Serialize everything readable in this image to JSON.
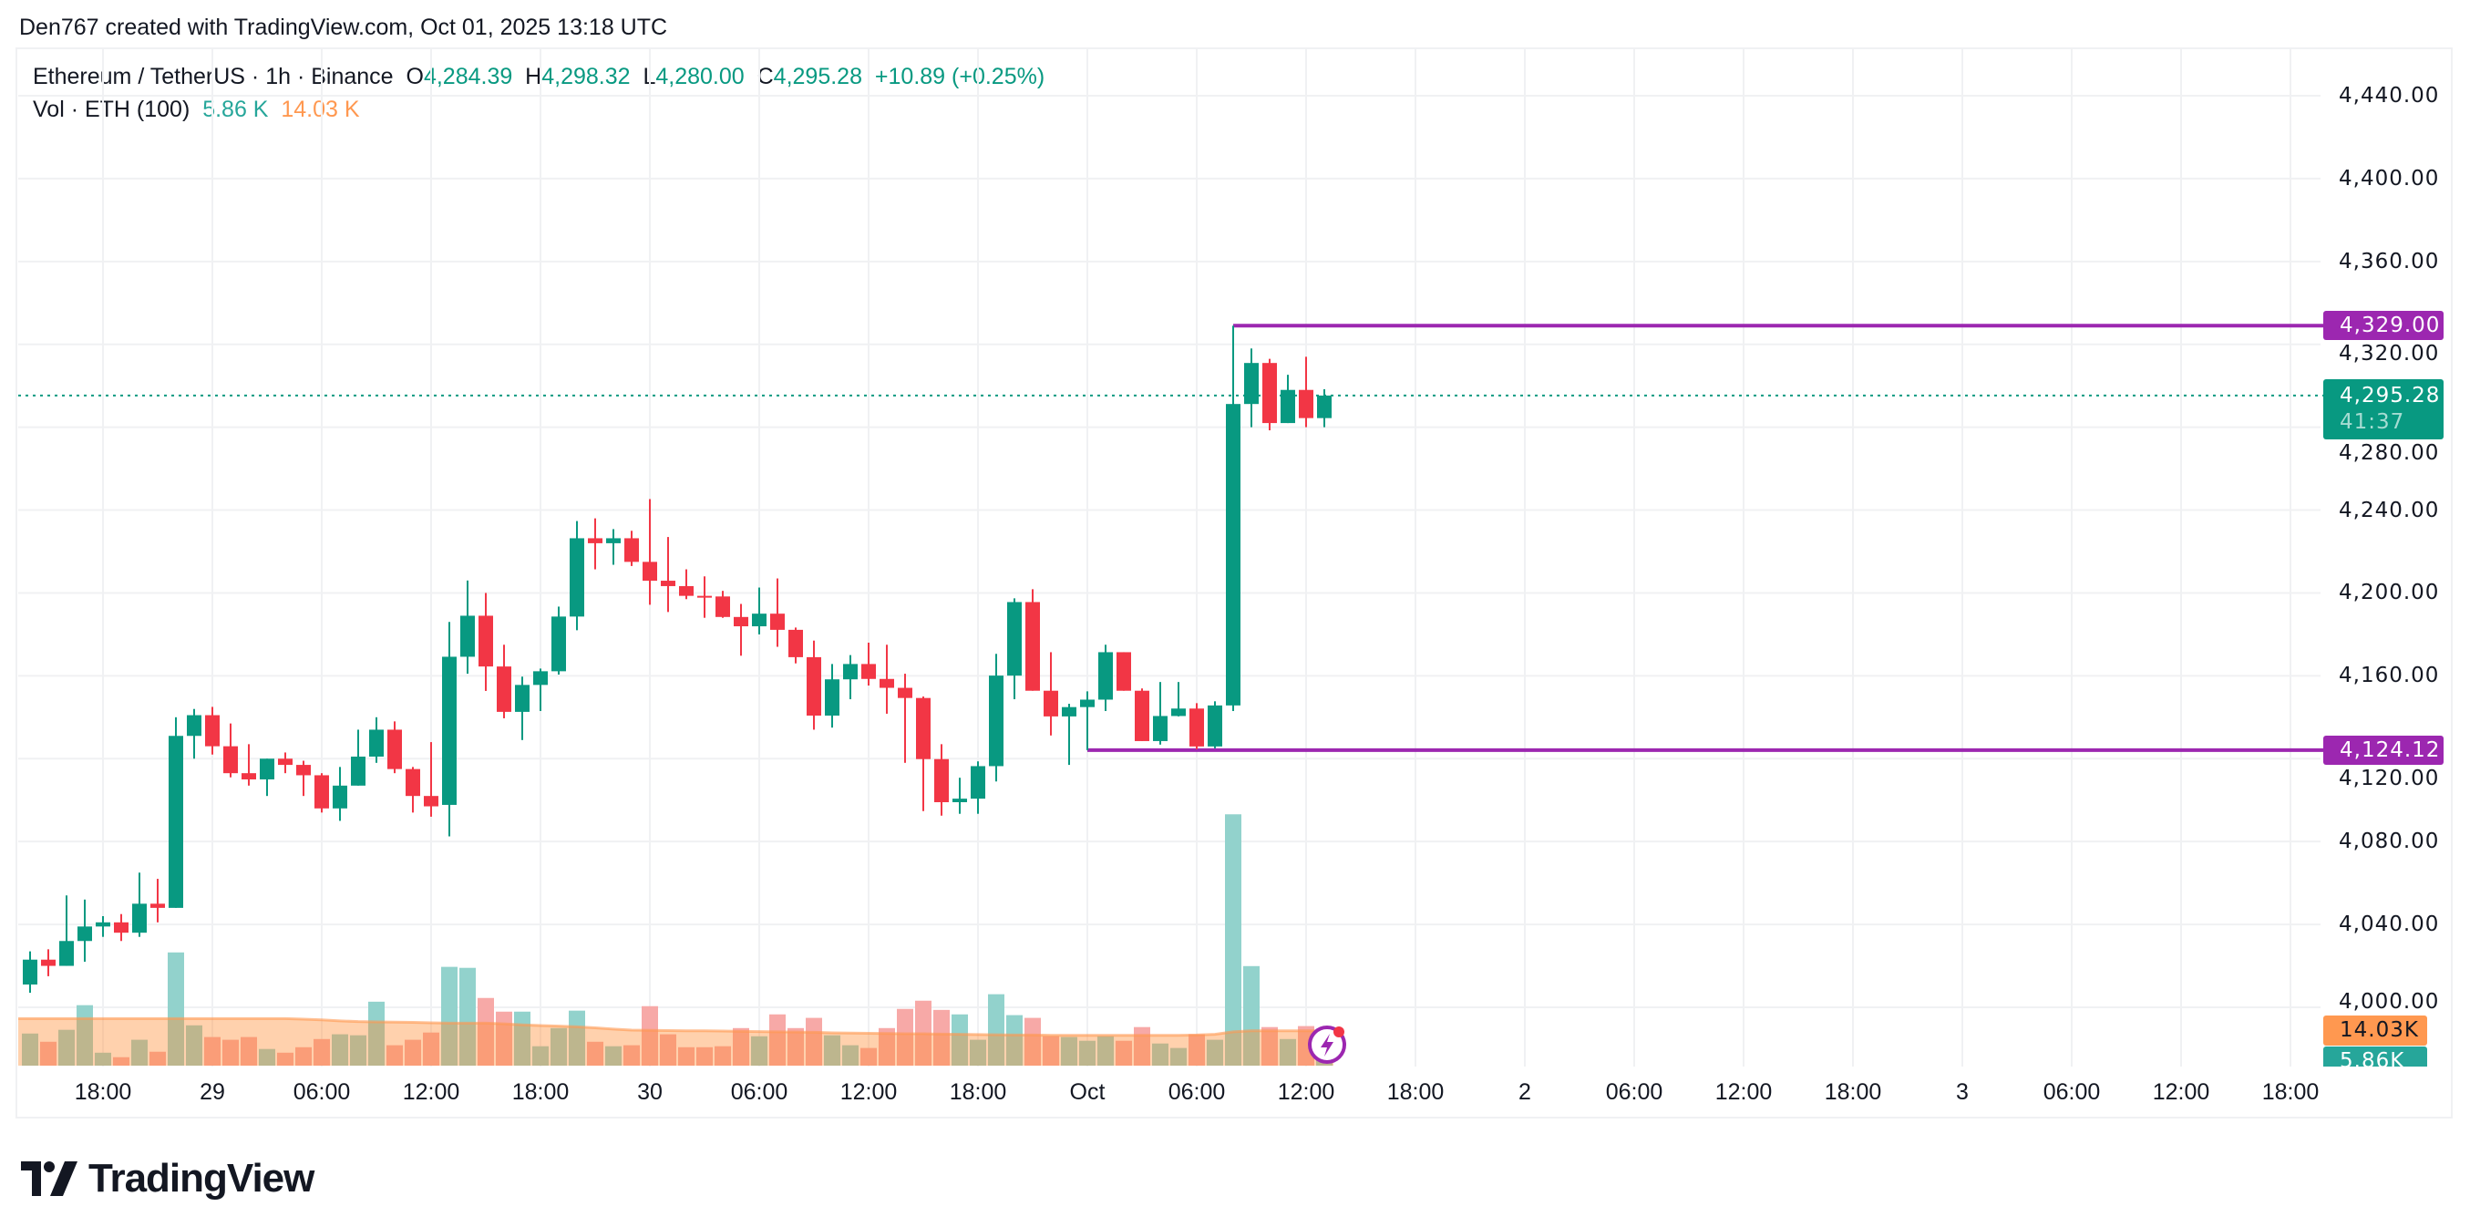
{
  "header": {
    "credit": "Den767 created with TradingView.com, Oct 01, 2025 13:18 UTC"
  },
  "legend": {
    "symbol": "Ethereum / TetherUS · 1h · Binance",
    "open_label": "O",
    "open": "4,284.39",
    "high_label": "H",
    "high": "4,298.32",
    "low_label": "L",
    "low": "4,280.00",
    "close_label": "C",
    "close": "4,295.28",
    "change": "+10.89 (+0.25%)",
    "vol_label": "Vol · ETH (100)",
    "vol_value": "5.86 K",
    "vol_ma": "14.03 K"
  },
  "axis_boxes": {
    "resistance": "4,329.00",
    "last_price": "4,295.28",
    "countdown": "41:37",
    "support": "4,124.12",
    "vol_ma": "14.03K",
    "vol_last": "5.86K"
  },
  "logo": {
    "text": "TradingView"
  },
  "colors": {
    "up": "#089981",
    "down": "#f23645",
    "vol_up": "#92d2cc",
    "vol_down": "#f7a9a7",
    "vol_ma": "#ff9850",
    "level_line": "#9c27b0",
    "grid": "#f0f1f3"
  },
  "icons": {
    "alert": "lightning-bolt-icon"
  },
  "chart_data": {
    "type": "candlestick",
    "symbol": "ETH/USDT",
    "interval": "1h",
    "ylim": [
      3980,
      4470
    ],
    "grid": true,
    "yticks": [
      {
        "value": 4440,
        "label": "4,440.00"
      },
      {
        "value": 4400,
        "label": "4,400.00"
      },
      {
        "value": 4360,
        "label": "4,360.00"
      },
      {
        "value": 4320,
        "label": "4,320.00"
      },
      {
        "value": 4280,
        "label": "4,280.00"
      },
      {
        "value": 4240,
        "label": "4,240.00"
      },
      {
        "value": 4200,
        "label": "4,200.00"
      },
      {
        "value": 4160,
        "label": "4,160.00"
      },
      {
        "value": 4120,
        "label": "4,120.00"
      },
      {
        "value": 4080,
        "label": "4,080.00"
      },
      {
        "value": 4040,
        "label": "4,040.00"
      },
      {
        "value": 4000,
        "label": "4,000.00"
      }
    ],
    "xticks": [
      "18:00",
      "29",
      "06:00",
      "12:00",
      "18:00",
      "30",
      "06:00",
      "12:00",
      "18:00",
      "Oct",
      "06:00",
      "12:00",
      "18:00",
      "2",
      "06:00",
      "12:00",
      "18:00",
      "3",
      "06:00",
      "12:00",
      "18:00"
    ],
    "horizontal_lines": [
      {
        "price": 4329.0,
        "start": "Oct 01 08:00"
      },
      {
        "price": 4124.12,
        "start": "Oct 01 00:00"
      }
    ],
    "last_price": 4295.28,
    "candle_fields": [
      "time",
      "open",
      "high",
      "low",
      "close",
      "volume_k"
    ],
    "candles": [
      [
        "Sep 28 14:00",
        4011,
        4027,
        4007,
        4023,
        12.9
      ],
      [
        "Sep 28 15:00",
        4023,
        4028,
        4015,
        4020,
        9.6
      ],
      [
        "Sep 28 16:00",
        4020,
        4054,
        4020,
        4032,
        14.4
      ],
      [
        "Sep 28 17:00",
        4032,
        4052,
        4022,
        4039,
        24.3
      ],
      [
        "Sep 28 18:00",
        4039,
        4044,
        4034,
        4041,
        5.2
      ],
      [
        "Sep 28 19:00",
        4041,
        4045,
        4032,
        4036,
        3.4
      ],
      [
        "Sep 28 20:00",
        4036,
        4065,
        4034,
        4050,
        10.4
      ],
      [
        "Sep 28 21:00",
        4050,
        4062,
        4041,
        4048,
        5.6
      ],
      [
        "Sep 28 22:00",
        4048,
        4140,
        4048,
        4131,
        45.5
      ],
      [
        "Sep 28 23:00",
        4131,
        4144,
        4120,
        4141,
        16.2
      ],
      [
        "Sep 29 00:00",
        4141,
        4145,
        4122,
        4126,
        11.5
      ],
      [
        "Sep 29 01:00",
        4126,
        4137,
        4111,
        4113,
        10.4
      ],
      [
        "Sep 29 02:00",
        4113,
        4127,
        4107,
        4110,
        11.5
      ],
      [
        "Sep 29 03:00",
        4110,
        4120,
        4102,
        4120,
        6.7
      ],
      [
        "Sep 29 04:00",
        4120,
        4123,
        4113,
        4117,
        5.2
      ],
      [
        "Sep 29 05:00",
        4117,
        4119,
        4102,
        4112,
        7.4
      ],
      [
        "Sep 29 06:00",
        4112,
        4113,
        4094,
        4096,
        10.7
      ],
      [
        "Sep 29 07:00",
        4096,
        4116,
        4090,
        4107,
        12.6
      ],
      [
        "Sep 29 08:00",
        4107,
        4134,
        4107,
        4121,
        12.2
      ],
      [
        "Sep 29 09:00",
        4121,
        4140,
        4118,
        4134,
        25.7
      ],
      [
        "Sep 29 10:00",
        4134,
        4138,
        4113,
        4115,
        8.2
      ],
      [
        "Sep 29 11:00",
        4115,
        4116,
        4094,
        4102,
        10.4
      ],
      [
        "Sep 29 12:00",
        4102,
        4128,
        4092,
        4097,
        13.3
      ],
      [
        "Sep 29 13:00",
        4097.7,
        4186,
        4082.5,
        4169.2,
        39.7
      ],
      [
        "Sep 29 14:00",
        4169.2,
        4206,
        4161,
        4189,
        39.3
      ],
      [
        "Sep 29 15:00",
        4189,
        4200,
        4152.7,
        4164.5,
        27.2
      ],
      [
        "Sep 29 16:00",
        4164.5,
        4175,
        4139.5,
        4142.6,
        21.7
      ],
      [
        "Sep 29 17:00",
        4142.6,
        4159.6,
        4129,
        4155.6,
        21.7
      ],
      [
        "Sep 29 18:00",
        4155.6,
        4163.5,
        4143,
        4162.2,
        7.8
      ],
      [
        "Sep 29 19:00",
        4162.2,
        4193.4,
        4160.6,
        4188.6,
        15.1
      ],
      [
        "Sep 29 20:00",
        4188.6,
        4234.7,
        4182,
        4226.4,
        22.1
      ],
      [
        "Sep 29 21:00",
        4226.4,
        4236,
        4211.4,
        4224,
        9.6
      ],
      [
        "Sep 29 22:00",
        4224,
        4230.8,
        4213.6,
        4226.4,
        7.8
      ],
      [
        "Sep 29 23:00",
        4226.4,
        4230,
        4213,
        4215,
        8.2
      ],
      [
        "Sep 30 00:00",
        4215,
        4245.3,
        4194.3,
        4205.9,
        23.9
      ],
      [
        "Sep 30 01:00",
        4205.9,
        4227,
        4190.8,
        4203.3,
        12.6
      ],
      [
        "Sep 30 02:00",
        4203.3,
        4211.4,
        4197,
        4198.6,
        7.4
      ],
      [
        "Sep 30 03:00",
        4198.6,
        4208,
        4188,
        4198.3,
        7.4
      ],
      [
        "Sep 30 04:00",
        4198.3,
        4201,
        4188,
        4188.4,
        7.8
      ],
      [
        "Sep 30 05:00",
        4188.4,
        4194.7,
        4169.7,
        4183.9,
        15.1
      ],
      [
        "Sep 30 06:00",
        4183.9,
        4202.6,
        4180,
        4190,
        11.8
      ],
      [
        "Sep 30 07:00",
        4190,
        4207,
        4174,
        4182.2,
        20.6
      ],
      [
        "Sep 30 08:00",
        4182.2,
        4183.3,
        4166,
        4169,
        15.1
      ],
      [
        "Sep 30 09:00",
        4169,
        4177,
        4134,
        4140.8,
        19.2
      ],
      [
        "Sep 30 10:00",
        4140.8,
        4165.7,
        4135,
        4158.3,
        12.2
      ],
      [
        "Sep 30 11:00",
        4158.3,
        4170,
        4148.7,
        4165.7,
        8.2
      ],
      [
        "Sep 30 12:00",
        4165.7,
        4176,
        4155.3,
        4158.5,
        7.1
      ],
      [
        "Sep 30 13:00",
        4158.5,
        4175,
        4141.7,
        4154.2,
        15.1
      ],
      [
        "Sep 30 14:00",
        4154.2,
        4161,
        4118,
        4149.3,
        22.8
      ],
      [
        "Sep 30 15:00",
        4149.3,
        4150,
        4094.7,
        4119.8,
        26.1
      ],
      [
        "Sep 30 16:00",
        4119.8,
        4127,
        4092.5,
        4099,
        22.4
      ],
      [
        "Sep 30 17:00",
        4099,
        4110.8,
        4093.4,
        4100.7,
        20.6
      ],
      [
        "Sep 30 18:00",
        4100.7,
        4118.7,
        4093.4,
        4116.4,
        10.4
      ],
      [
        "Sep 30 19:00",
        4116.4,
        4170.6,
        4109,
        4160.1,
        28.7
      ],
      [
        "Sep 30 20:00",
        4160.1,
        4197.4,
        4148.7,
        4195.6,
        20.3
      ],
      [
        "Sep 30 21:00",
        4195.6,
        4201.8,
        4152.8,
        4152.8,
        19.2
      ],
      [
        "Sep 30 22:00",
        4152.8,
        4171.4,
        4131.2,
        4140.4,
        11.8
      ],
      [
        "Sep 30 23:00",
        4140.4,
        4146.5,
        4117,
        4144.9,
        11.5
      ],
      [
        "Oct 01 00:00",
        4144.9,
        4152.5,
        4124.12,
        4148.5,
        10.0
      ],
      [
        "Oct 01 01:00",
        4148.5,
        4175,
        4143,
        4171.4,
        11.8
      ],
      [
        "Oct 01 02:00",
        4171.4,
        4171.4,
        4152.8,
        4152.8,
        10.0
      ],
      [
        "Oct 01 03:00",
        4152.8,
        4153.9,
        4128.5,
        4128.5,
        15.5
      ],
      [
        "Oct 01 04:00",
        4128.5,
        4157,
        4126.8,
        4140.6,
        8.9
      ],
      [
        "Oct 01 05:00",
        4140.6,
        4157,
        4140.4,
        4144.2,
        7.1
      ],
      [
        "Oct 01 06:00",
        4144.2,
        4146.8,
        4124.5,
        4125.9,
        12.6
      ],
      [
        "Oct 01 07:00",
        4125.9,
        4147.7,
        4125,
        4145.7,
        10.4
      ],
      [
        "Oct 01 08:00",
        4145.7,
        4329,
        4143,
        4291.2,
        101
      ],
      [
        "Oct 01 09:00",
        4291.2,
        4318,
        4280,
        4311,
        40.0
      ],
      [
        "Oct 01 10:00",
        4311,
        4313,
        4278.5,
        4282,
        15.5
      ],
      [
        "Oct 01 11:00",
        4282,
        4305.3,
        4282,
        4298,
        10.7
      ],
      [
        "Oct 01 12:00",
        4298,
        4314,
        4280,
        4284.4,
        15.9
      ],
      [
        "Oct 01 13:00",
        4284.39,
        4298.32,
        4280.0,
        4295.28,
        5.86
      ]
    ],
    "volume_ma_k": [
      18.9,
      18.9,
      18.9,
      18.9,
      18.9,
      18.9,
      18.9,
      18.9,
      18.9,
      18.9,
      18.9,
      18.9,
      18.9,
      18.9,
      18.9,
      18.7,
      18.4,
      18.0,
      17.7,
      17.6,
      17.5,
      17.4,
      17.2,
      17.1,
      17.1,
      17.1,
      16.8,
      16.4,
      16.1,
      15.9,
      15.6,
      15.2,
      14.7,
      14.3,
      14.2,
      14.1,
      14.0,
      14.0,
      13.9,
      13.8,
      13.7,
      13.6,
      13.5,
      13.4,
      13.2,
      13.1,
      13.0,
      12.9,
      12.8,
      12.8,
      12.7,
      12.6,
      12.5,
      12.4,
      12.3,
      12.3,
      12.2,
      12.2,
      12.2,
      12.2,
      12.2,
      12.2,
      12.2,
      12.2,
      12.3,
      12.6,
      13.6,
      14.0,
      14.0,
      14.0,
      14.0,
      14.03
    ]
  }
}
